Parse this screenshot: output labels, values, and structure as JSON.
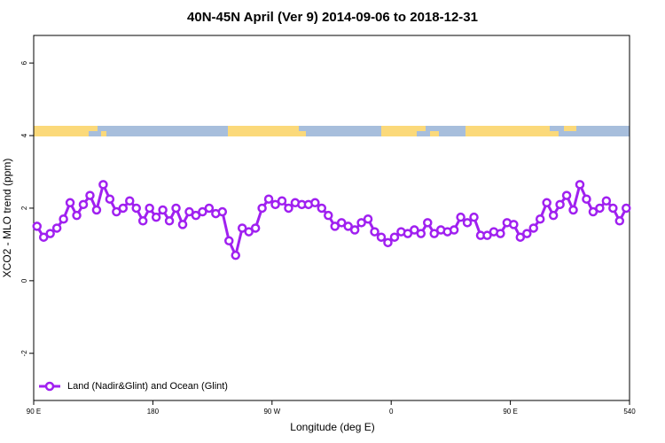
{
  "chart_data": {
    "type": "line",
    "title": "40N-45N April (Ver 9)   2014-09-06 to 2018-12-31",
    "xlabel": "Longitude (deg E)",
    "ylabel": "XCO2 - MLO trend (ppm)",
    "x": [
      92.5,
      97.5,
      102.5,
      107.5,
      112.5,
      117.5,
      122.5,
      127.5,
      132.5,
      137.5,
      142.5,
      147.5,
      152.5,
      157.5,
      162.5,
      167.5,
      172.5,
      177.5,
      182.5,
      187.5,
      192.5,
      197.5,
      202.5,
      207.5,
      212.5,
      217.5,
      222.5,
      227.5,
      232.5,
      237.5,
      242.5,
      247.5,
      252.5,
      257.5,
      262.5,
      267.5,
      272.5,
      277.5,
      282.5,
      287.5,
      292.5,
      297.5,
      302.5,
      307.5,
      312.5,
      317.5,
      322.5,
      327.5,
      332.5,
      337.5,
      342.5,
      347.5,
      352.5,
      357.5,
      362.5,
      367.5,
      372.5,
      377.5,
      382.5,
      387.5,
      392.5,
      397.5,
      402.5,
      407.5,
      412.5,
      417.5,
      422.5,
      427.5,
      432.5,
      437.5,
      442.5,
      447.5,
      452.5,
      457.5,
      462.5,
      467.5,
      472.5,
      477.5,
      482.5,
      487.5,
      492.5,
      497.5,
      502.5,
      507.5,
      512.5,
      517.5,
      522.5,
      527.5,
      532.5,
      537.5
    ],
    "series": [
      {
        "name": "Land (Nadir&Glint) and Ocean (Glint)",
        "color": "#a020f0",
        "values": [
          1.5,
          1.2,
          1.3,
          1.45,
          1.7,
          2.15,
          1.8,
          2.1,
          2.35,
          1.95,
          2.65,
          2.25,
          1.9,
          2.0,
          2.2,
          2.0,
          1.65,
          2.0,
          1.75,
          1.95,
          1.65,
          2.0,
          1.55,
          1.9,
          1.8,
          1.9,
          2.0,
          1.85,
          1.9,
          1.1,
          0.7,
          1.45,
          1.35,
          1.45,
          2.0,
          2.25,
          2.1,
          2.2,
          2.0,
          2.15,
          2.1,
          2.1,
          2.15,
          2.0,
          1.8,
          1.5,
          1.6,
          1.5,
          1.4,
          1.6,
          1.7,
          1.35,
          1.2,
          1.05,
          1.2,
          1.35,
          1.3,
          1.4,
          1.3,
          1.6,
          1.3,
          1.4,
          1.35,
          1.4,
          1.75,
          1.6,
          1.75,
          1.25,
          1.25,
          1.35,
          1.3,
          1.6,
          1.55,
          1.2,
          1.3,
          1.45,
          1.7,
          2.15,
          1.8,
          2.1,
          2.35,
          1.95,
          2.65,
          2.25,
          1.9,
          2.0,
          2.2,
          2.0,
          1.65,
          2.0
        ]
      }
    ],
    "xlim": [
      90,
      540
    ],
    "xticks": [
      {
        "value": 90,
        "label": "90 E"
      },
      180,
      {
        "value": 270,
        "label": "90 W"
      },
      {
        "value": 360,
        "label": "0"
      },
      {
        "value": 450,
        "label": "90 E"
      },
      540
    ],
    "ylim": [
      -3.3,
      6.76
    ],
    "yticks": [
      -2,
      0,
      2,
      4,
      6
    ],
    "legend": "bottom-left"
  }
}
